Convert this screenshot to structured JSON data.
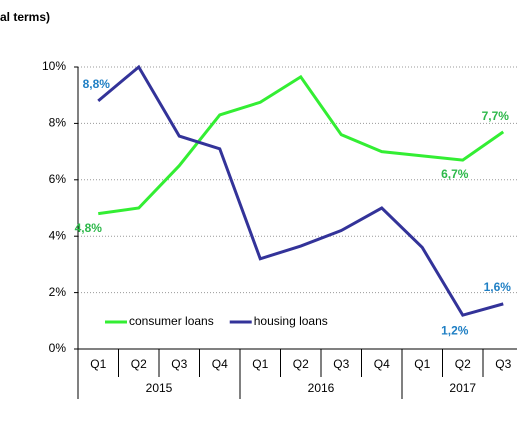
{
  "chart_data": {
    "type": "line",
    "title": "al terms)",
    "categories": [
      "Q1",
      "Q2",
      "Q3",
      "Q4",
      "Q1",
      "Q2",
      "Q3",
      "Q4",
      "Q1",
      "Q2",
      "Q3"
    ],
    "groups": [
      {
        "label": "2015",
        "count": 4
      },
      {
        "label": "2016",
        "count": 4
      },
      {
        "label": "2017",
        "count": 3
      }
    ],
    "series": [
      {
        "name": "consumer loans",
        "color": "#33ee33",
        "label_color": "#2db84a",
        "values": [
          4.8,
          5.0,
          6.5,
          8.3,
          8.75,
          9.65,
          7.6,
          7.0,
          6.85,
          6.7,
          7.7
        ],
        "value_labels": [
          "4,8%",
          null,
          null,
          null,
          null,
          null,
          null,
          null,
          null,
          "6,7%",
          "7,7%"
        ]
      },
      {
        "name": "housing loans",
        "color": "#333399",
        "label_color": "#1f7fc4",
        "values": [
          8.8,
          10.0,
          7.55,
          7.1,
          3.2,
          3.65,
          4.2,
          5.0,
          3.6,
          1.2,
          1.6
        ],
        "value_labels": [
          "8,8%",
          null,
          null,
          null,
          null,
          null,
          null,
          null,
          null,
          "1,2%",
          "1,6%"
        ]
      }
    ],
    "ylim": [
      0,
      10
    ],
    "yticks": [
      {
        "value": 0,
        "label": "0%"
      },
      {
        "value": 2,
        "label": "2%"
      },
      {
        "value": 4,
        "label": "4%"
      },
      {
        "value": 6,
        "label": "6%"
      },
      {
        "value": 8,
        "label": "8%"
      },
      {
        "value": 10,
        "label": "10%"
      }
    ],
    "grid": true,
    "legend": "lower left"
  }
}
